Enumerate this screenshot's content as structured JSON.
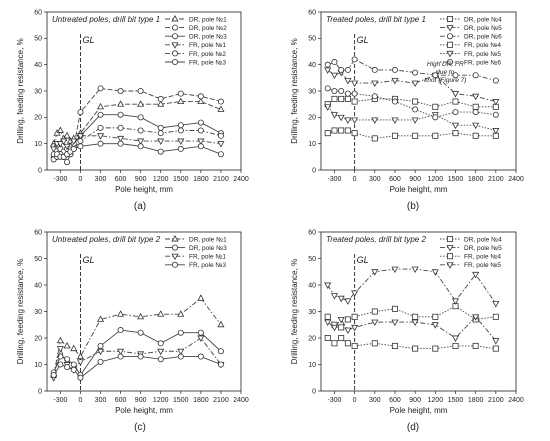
{
  "panels": [
    {
      "id": "a",
      "panel_label": "(a)",
      "chart_data": {
        "type": "line",
        "title": "Untreated poles, drill bit type 1",
        "xlabel": "Pole height, mm",
        "ylabel": "Drilling, feeding resistance, %",
        "xlim": [
          -500,
          2400
        ],
        "ylim": [
          0,
          60
        ],
        "xticks": [
          -300,
          0,
          300,
          600,
          900,
          1200,
          1500,
          1800,
          2100,
          2400
        ],
        "yticks": [
          0,
          10,
          20,
          30,
          40,
          50,
          60
        ],
        "grid": false,
        "legend_position": "top-right",
        "annotations": [
          {
            "text": "GL",
            "x": 0
          }
        ],
        "series": [
          {
            "name": "DR, pole №1",
            "style": "dash",
            "marker": "triangle-up",
            "x": [
              -400,
              -350,
              -300,
              -250,
              -200,
              -150,
              -100,
              0,
              300,
              600,
              900,
              1200,
              1500,
              1800,
              2100
            ],
            "y": [
              10,
              14,
              15,
              12,
              13,
              11,
              12,
              14,
              24,
              25,
              25,
              25,
              26,
              26,
              23
            ]
          },
          {
            "name": "DR, pole №2",
            "style": "dash",
            "marker": "circle",
            "x": [
              -400,
              -350,
              -300,
              -250,
              -200,
              -150,
              -100,
              0,
              300,
              600,
              900,
              1200,
              1500,
              1800,
              2100
            ],
            "y": [
              5,
              5,
              7,
              5,
              6,
              6,
              9,
              22,
              31,
              30,
              30,
              27,
              29,
              28,
              26
            ]
          },
          {
            "name": "DR, pole №3",
            "style": "solid",
            "marker": "circle",
            "x": [
              -400,
              -350,
              -300,
              -250,
              -200,
              -150,
              -100,
              0,
              300,
              600,
              900,
              1200,
              1500,
              1800,
              2100
            ],
            "y": [
              9,
              9,
              8,
              7,
              8,
              9,
              10,
              13,
              21,
              21,
              20,
              16,
              17,
              18,
              14
            ]
          },
          {
            "name": "FR, pole №1",
            "style": "dashdot",
            "marker": "triangle-down",
            "x": [
              -400,
              -350,
              -300,
              -250,
              -200,
              -150,
              -100,
              0,
              300,
              600,
              900,
              1200,
              1500,
              1800,
              2100
            ],
            "y": [
              8,
              10,
              10,
              11,
              9,
              8,
              11,
              13,
              13,
              12,
              11,
              11,
              11,
              11,
              10
            ]
          },
          {
            "name": "FR, pole №2",
            "style": "dashdot",
            "marker": "circle",
            "x": [
              -400,
              -350,
              -300,
              -250,
              -200,
              -150,
              -100,
              0,
              300,
              600,
              900,
              1200,
              1500,
              1800,
              2100
            ],
            "y": [
              4,
              5,
              6,
              5,
              3,
              6,
              8,
              11,
              16,
              16,
              15,
              14,
              15,
              15,
              13
            ]
          },
          {
            "name": "FR, pole №3",
            "style": "solid",
            "marker": "circle",
            "x": [
              -400,
              -350,
              -300,
              -250,
              -200,
              -150,
              -100,
              0,
              300,
              600,
              900,
              1200,
              1500,
              1800,
              2100
            ],
            "y": [
              6,
              6,
              5,
              5,
              6,
              7,
              8,
              9,
              10,
              10,
              9,
              7,
              8,
              9,
              6
            ]
          }
        ]
      }
    },
    {
      "id": "b",
      "panel_label": "(b)",
      "chart_data": {
        "type": "line",
        "title": "Treated poles, drill bit type 1",
        "xlabel": "Pole height, mm",
        "ylabel": "Drilling, feeding resistance, %",
        "xlim": [
          -500,
          2400
        ],
        "ylim": [
          0,
          60
        ],
        "xticks": [
          -300,
          0,
          300,
          600,
          900,
          1200,
          1500,
          1800,
          2100,
          2400
        ],
        "yticks": [
          0,
          10,
          20,
          30,
          40,
          50,
          60
        ],
        "grid": false,
        "legend_position": "top-right",
        "annotations": [
          {
            "text": "GL",
            "x": 0
          },
          {
            "text": "High DR, FR due to knot (Figure 7)",
            "x": 1200,
            "y": 37
          }
        ],
        "series": [
          {
            "name": "DR, pole №4",
            "style": "dot",
            "marker": "square",
            "x": [
              -400,
              -300,
              -200,
              -100,
              0,
              300,
              600,
              900,
              1200,
              1500,
              1800,
              2100
            ],
            "y": [
              25,
              27,
              27,
              27,
              26,
              27,
              27,
              26,
              24,
              26,
              24,
              24
            ]
          },
          {
            "name": "DR, pole №5",
            "style": "dashdot",
            "marker": "triangle-down",
            "x": [
              -400,
              -300,
              -200,
              -100,
              0,
              300,
              600,
              900,
              1200,
              1500,
              1800,
              2100
            ],
            "y": [
              38,
              36,
              37,
              34,
              33,
              33,
              34,
              33,
              36,
              29,
              28,
              26
            ]
          },
          {
            "name": "DR, pole №6",
            "style": "dashdot",
            "marker": "circle",
            "x": [
              -400,
              -300,
              -200,
              -100,
              0,
              300,
              600,
              900,
              1200,
              1500,
              1800,
              2100
            ],
            "y": [
              40,
              41,
              38,
              38,
              42,
              38,
              38,
              37,
              36,
              36,
              36,
              34
            ]
          },
          {
            "name": "FR, pole №4",
            "style": "dot",
            "marker": "square",
            "x": [
              -400,
              -300,
              -200,
              -100,
              0,
              300,
              600,
              900,
              1200,
              1500,
              1800,
              2100
            ],
            "y": [
              14,
              15,
              15,
              15,
              14,
              12,
              13,
              13,
              13,
              14,
              13,
              13
            ]
          },
          {
            "name": "FR, pole №5",
            "style": "dot",
            "marker": "triangle-down",
            "x": [
              -400,
              -300,
              -200,
              -100,
              0,
              300,
              600,
              900,
              1200,
              1500,
              1800,
              2100
            ],
            "y": [
              24,
              21,
              20,
              19,
              19,
              19,
              19,
              19,
              21,
              17,
              17,
              15
            ]
          },
          {
            "name": "FR, pole №6",
            "style": "dot",
            "marker": "circle",
            "x": [
              -400,
              -300,
              -200,
              -100,
              0,
              300,
              600,
              900,
              1200,
              1500,
              1800,
              2100
            ],
            "y": [
              31,
              30,
              30,
              29,
              29,
              28,
              26,
              23,
              20,
              22,
              22,
              21
            ]
          }
        ]
      }
    },
    {
      "id": "c",
      "panel_label": "(c)",
      "chart_data": {
        "type": "line",
        "title": "Untreated poles, drill bit type 2",
        "xlabel": "Pole height, mm",
        "ylabel": "Drilling, feeding resistance, %",
        "xlim": [
          -500,
          2400
        ],
        "ylim": [
          0,
          60
        ],
        "xticks": [
          -300,
          0,
          300,
          600,
          900,
          1200,
          1500,
          1800,
          2100,
          2400
        ],
        "yticks": [
          0,
          10,
          20,
          30,
          40,
          50,
          60
        ],
        "grid": false,
        "legend_position": "top-right",
        "annotations": [
          {
            "text": "GL",
            "x": 0
          }
        ],
        "series": [
          {
            "name": "DR, pole №1",
            "style": "dashdot",
            "marker": "triangle-up",
            "x": [
              -400,
              -300,
              -200,
              -100,
              0,
              300,
              600,
              900,
              1200,
              1500,
              1800,
              2100
            ],
            "y": [
              6,
              19,
              17,
              16,
              13,
              27,
              29,
              28,
              29,
              29,
              35,
              25
            ]
          },
          {
            "name": "DR, pole №3",
            "style": "solid",
            "marker": "circle",
            "x": [
              -400,
              -300,
              -200,
              -100,
              0,
              300,
              600,
              900,
              1200,
              1500,
              1800,
              2100
            ],
            "y": [
              7,
              13,
              12,
              10,
              6,
              17,
              23,
              22,
              18,
              22,
              22,
              15
            ]
          },
          {
            "name": "FR, pole №1",
            "style": "dashdot",
            "marker": "triangle-down",
            "x": [
              -400,
              -300,
              -200,
              -100,
              0,
              300,
              600,
              900,
              1200,
              1500,
              1800,
              2100
            ],
            "y": [
              5,
              16,
              10,
              8,
              11,
              15,
              15,
              14,
              15,
              15,
              20,
              10
            ]
          },
          {
            "name": "FR, pole №3",
            "style": "solid",
            "marker": "circle",
            "x": [
              -400,
              -300,
              -200,
              -100,
              0,
              300,
              600,
              900,
              1200,
              1500,
              1800,
              2100
            ],
            "y": [
              6,
              10,
              9,
              8,
              5,
              11,
              13,
              13,
              12,
              13,
              13,
              10
            ]
          }
        ]
      }
    },
    {
      "id": "d",
      "panel_label": "(d)",
      "chart_data": {
        "type": "line",
        "title": "Treated poles, drill bit type 2",
        "xlabel": "Pole height, mm",
        "ylabel": "Drilling, feeding resistance, %",
        "xlim": [
          -500,
          2400
        ],
        "ylim": [
          0,
          60
        ],
        "xticks": [
          -300,
          0,
          300,
          600,
          900,
          1200,
          1500,
          1800,
          2100,
          2400
        ],
        "yticks": [
          0,
          10,
          20,
          30,
          40,
          50,
          60
        ],
        "grid": false,
        "legend_position": "top-right",
        "annotations": [
          {
            "text": "GL",
            "x": 0
          }
        ],
        "series": [
          {
            "name": "DR, pole №4",
            "style": "dot",
            "marker": "square",
            "x": [
              -400,
              -300,
              -200,
              -100,
              0,
              300,
              600,
              900,
              1200,
              1500,
              1800,
              2100
            ],
            "y": [
              28,
              25,
              24,
              27,
              28,
              30,
              31,
              28,
              28,
              32,
              27,
              28
            ]
          },
          {
            "name": "DR, pole №5",
            "style": "dashdot",
            "marker": "triangle-down",
            "x": [
              -400,
              -300,
              -200,
              -100,
              0,
              300,
              600,
              900,
              1200,
              1500,
              1800,
              2100
            ],
            "y": [
              26,
              24,
              27,
              23,
              24,
              26,
              26,
              26,
              25,
              20,
              28,
              19
            ]
          },
          {
            "name": "FR, pole №4",
            "style": "dot",
            "marker": "square",
            "x": [
              -400,
              -300,
              -200,
              -100,
              0,
              300,
              600,
              900,
              1200,
              1500,
              1800,
              2100
            ],
            "y": [
              20,
              18,
              20,
              18,
              17,
              18,
              17,
              16,
              16,
              17,
              17,
              16
            ]
          },
          {
            "name": "FR, pole №5",
            "style": "dashdot",
            "marker": "triangle-down",
            "x": [
              -400,
              -300,
              -200,
              -100,
              0,
              300,
              600,
              900,
              1200,
              1500,
              1800,
              2100
            ],
            "y": [
              40,
              36,
              35,
              34,
              37,
              45,
              46,
              46,
              45,
              34,
              44,
              33
            ]
          }
        ]
      }
    }
  ]
}
